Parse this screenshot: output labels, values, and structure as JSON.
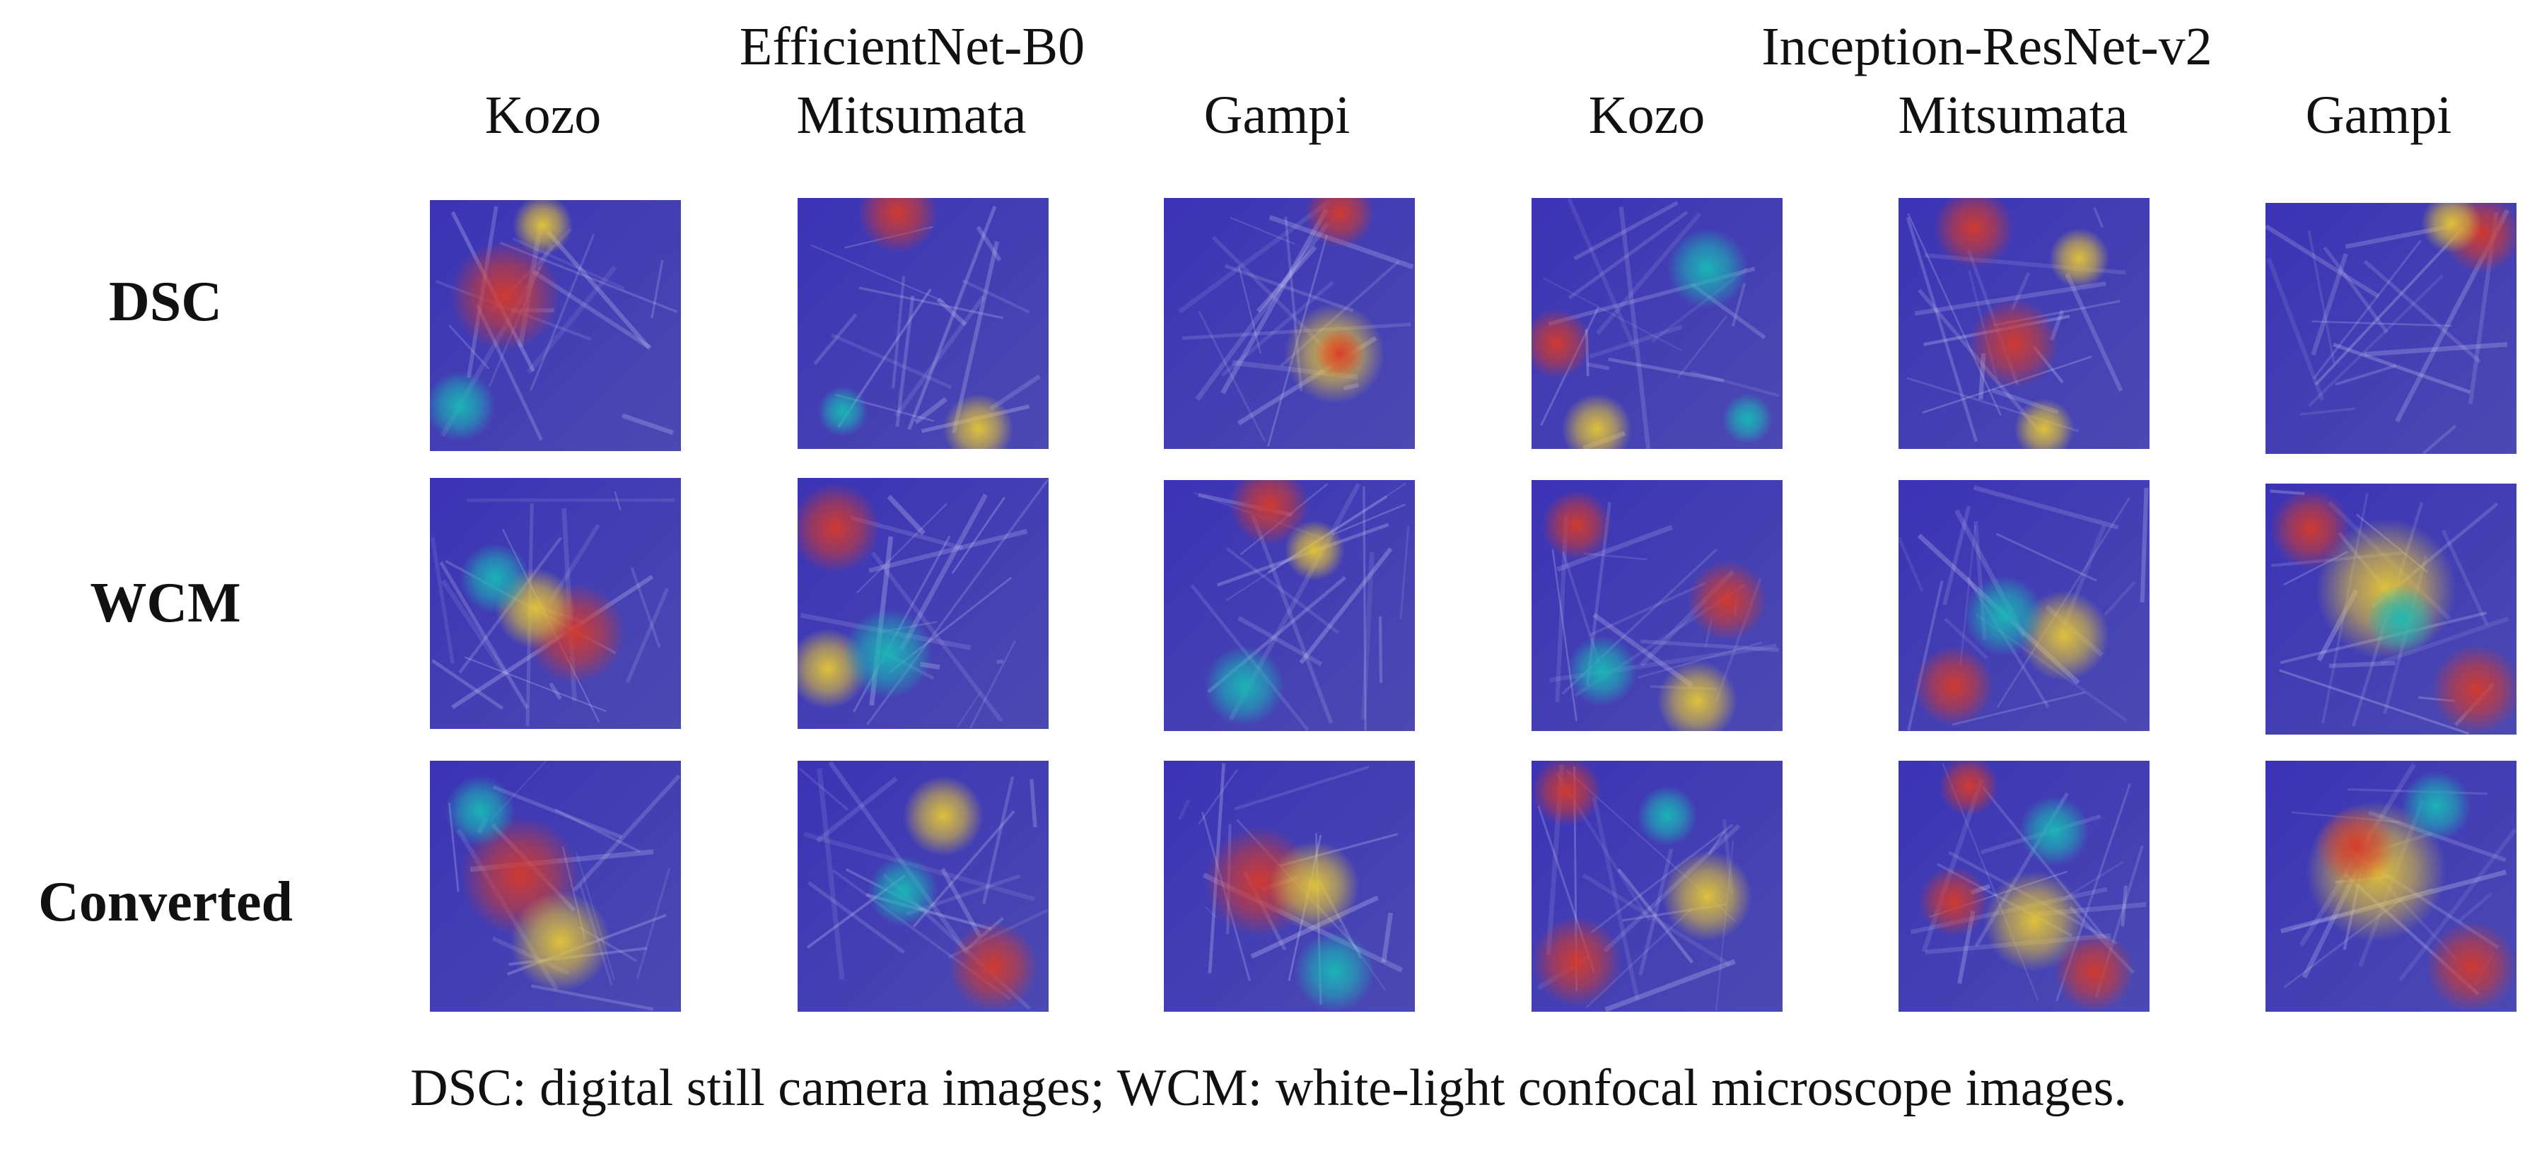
{
  "header": {
    "groups": [
      {
        "title": "EfficientNet-B0"
      },
      {
        "title": "Inception-ResNet-v2"
      }
    ],
    "columns": [
      {
        "label": "Kozo"
      },
      {
        "label": "Mitsumata"
      },
      {
        "label": "Gampi"
      },
      {
        "label": "Kozo"
      },
      {
        "label": "Mitsumata"
      },
      {
        "label": "Gampi"
      }
    ]
  },
  "rows": [
    {
      "label": "DSC"
    },
    {
      "label": "WCM"
    },
    {
      "label": "Converted"
    }
  ],
  "caption": "DSC: digital still camera images; WCM: white-light confocal microscope images.",
  "figure": {
    "image_type": "Grad-CAM heatmap overlays on paper fiber images",
    "colors": {
      "low": "#3b33b5",
      "mid": "#19b9b6",
      "high_yellow": "#e6c735",
      "high_red": "#d63a2a"
    }
  }
}
